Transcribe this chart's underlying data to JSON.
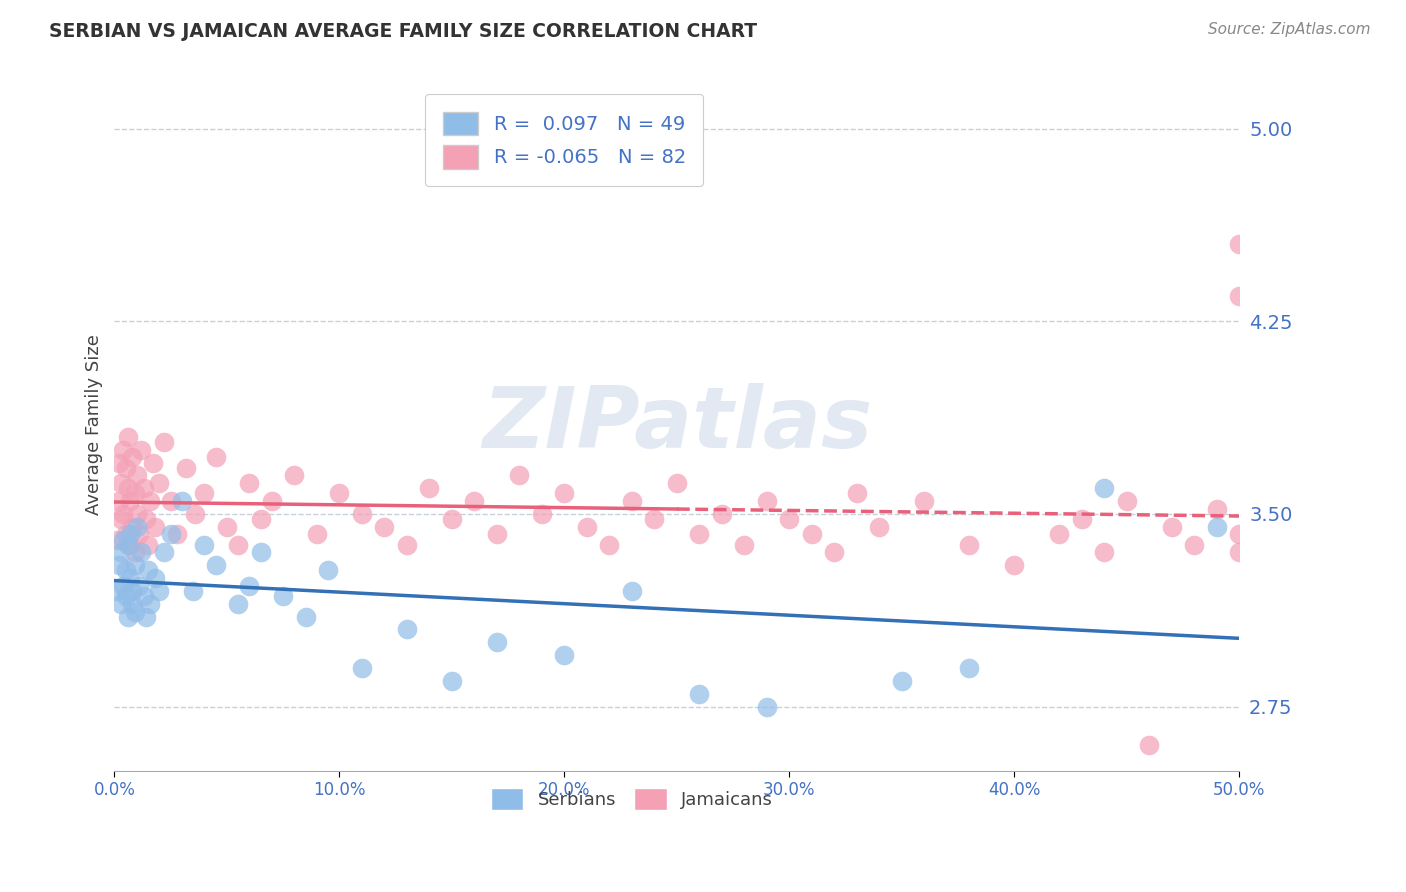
{
  "title": "SERBIAN VS JAMAICAN AVERAGE FAMILY SIZE CORRELATION CHART",
  "source": "Source: ZipAtlas.com",
  "ylabel": "Average Family Size",
  "xlim": [
    0.0,
    0.5
  ],
  "ylim": [
    2.5,
    5.2
  ],
  "yticks": [
    2.75,
    3.5,
    4.25,
    5.0
  ],
  "xticks": [
    0.0,
    0.1,
    0.2,
    0.3,
    0.4,
    0.5
  ],
  "xtick_labels": [
    "0.0%",
    "10.0%",
    "20.0%",
    "30.0%",
    "40.0%",
    "50.0%"
  ],
  "serbian_R": 0.097,
  "serbian_N": 49,
  "jamaican_R": -0.065,
  "jamaican_N": 82,
  "serbian_color": "#90bce8",
  "jamaican_color": "#f4a0b5",
  "serbian_line_color": "#3470b5",
  "jamaican_line_color": "#e8607a",
  "watermark_text": "ZIPatlas",
  "watermark_color": "#ccd8e8",
  "background_color": "#ffffff",
  "grid_color": "#c8d0dc",
  "title_color": "#333333",
  "axis_label_color": "#444444",
  "tick_color": "#4472c4",
  "legend_R_color": "#4472c4",
  "serbian_x": [
    0.001,
    0.002,
    0.003,
    0.003,
    0.004,
    0.004,
    0.005,
    0.005,
    0.006,
    0.006,
    0.007,
    0.007,
    0.008,
    0.008,
    0.009,
    0.009,
    0.01,
    0.011,
    0.012,
    0.013,
    0.014,
    0.015,
    0.016,
    0.018,
    0.02,
    0.022,
    0.025,
    0.03,
    0.035,
    0.04,
    0.045,
    0.055,
    0.06,
    0.065,
    0.075,
    0.085,
    0.095,
    0.11,
    0.13,
    0.15,
    0.17,
    0.2,
    0.23,
    0.26,
    0.29,
    0.35,
    0.38,
    0.44,
    0.49
  ],
  "serbian_y": [
    3.2,
    3.3,
    3.15,
    3.35,
    3.22,
    3.4,
    3.18,
    3.28,
    3.1,
    3.38,
    3.25,
    3.42,
    3.2,
    3.15,
    3.3,
    3.12,
    3.45,
    3.22,
    3.35,
    3.18,
    3.1,
    3.28,
    3.15,
    3.25,
    3.2,
    3.35,
    3.42,
    3.55,
    3.2,
    3.38,
    3.3,
    3.15,
    3.22,
    3.35,
    3.18,
    3.1,
    3.28,
    2.9,
    3.05,
    2.85,
    3.0,
    2.95,
    3.2,
    2.8,
    2.75,
    2.85,
    2.9,
    3.6,
    3.45
  ],
  "jamaican_x": [
    0.001,
    0.002,
    0.002,
    0.003,
    0.003,
    0.004,
    0.004,
    0.005,
    0.005,
    0.006,
    0.006,
    0.007,
    0.007,
    0.008,
    0.008,
    0.009,
    0.009,
    0.01,
    0.01,
    0.011,
    0.012,
    0.013,
    0.014,
    0.015,
    0.016,
    0.017,
    0.018,
    0.02,
    0.022,
    0.025,
    0.028,
    0.032,
    0.036,
    0.04,
    0.045,
    0.05,
    0.055,
    0.06,
    0.065,
    0.07,
    0.08,
    0.09,
    0.1,
    0.11,
    0.12,
    0.13,
    0.14,
    0.15,
    0.16,
    0.17,
    0.18,
    0.19,
    0.2,
    0.21,
    0.22,
    0.23,
    0.24,
    0.25,
    0.26,
    0.27,
    0.28,
    0.29,
    0.3,
    0.31,
    0.32,
    0.33,
    0.34,
    0.36,
    0.38,
    0.4,
    0.42,
    0.43,
    0.44,
    0.45,
    0.46,
    0.47,
    0.48,
    0.49,
    0.5,
    0.5,
    0.5,
    0.5
  ],
  "jamaican_y": [
    3.4,
    3.55,
    3.7,
    3.48,
    3.62,
    3.75,
    3.5,
    3.68,
    3.42,
    3.6,
    3.8,
    3.55,
    3.38,
    3.72,
    3.45,
    3.58,
    3.35,
    3.65,
    3.5,
    3.42,
    3.75,
    3.6,
    3.48,
    3.38,
    3.55,
    3.7,
    3.45,
    3.62,
    3.78,
    3.55,
    3.42,
    3.68,
    3.5,
    3.58,
    3.72,
    3.45,
    3.38,
    3.62,
    3.48,
    3.55,
    3.65,
    3.42,
    3.58,
    3.5,
    3.45,
    3.38,
    3.6,
    3.48,
    3.55,
    3.42,
    3.65,
    3.5,
    3.58,
    3.45,
    3.38,
    3.55,
    3.48,
    3.62,
    3.42,
    3.5,
    3.38,
    3.55,
    3.48,
    3.42,
    3.35,
    3.58,
    3.45,
    3.55,
    3.38,
    3.3,
    3.42,
    3.48,
    3.35,
    3.55,
    2.6,
    3.45,
    3.38,
    3.52,
    3.42,
    3.35,
    4.55,
    4.35
  ]
}
